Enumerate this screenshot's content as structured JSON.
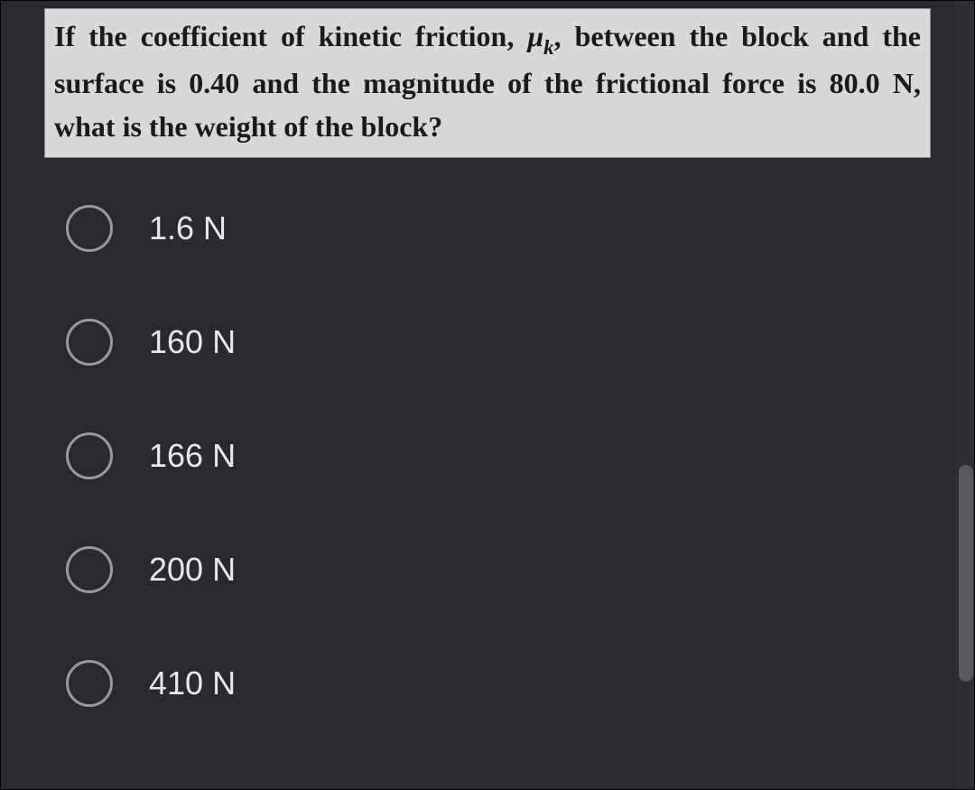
{
  "question": {
    "part1": "If the coefficient of kinetic friction, ",
    "mu": "μ",
    "sub": "k",
    "comma": ",",
    "part2": " between the block and the surface is 0.40 and the magnitude of the frictional force is 80.0 N, what is the weight of the block?"
  },
  "options": [
    {
      "label": "1.6 N"
    },
    {
      "label": "160 N"
    },
    {
      "label": "166 N"
    },
    {
      "label": "200 N"
    },
    {
      "label": "410 N"
    }
  ],
  "colors": {
    "background": "#2a2a2e",
    "question_bg": "#d8d8d8",
    "question_fg": "#1a1a1a",
    "option_fg": "#e8e8e8",
    "radio_border": "#9a9a9a",
    "scrollbar_thumb": "#5a5a5e"
  }
}
